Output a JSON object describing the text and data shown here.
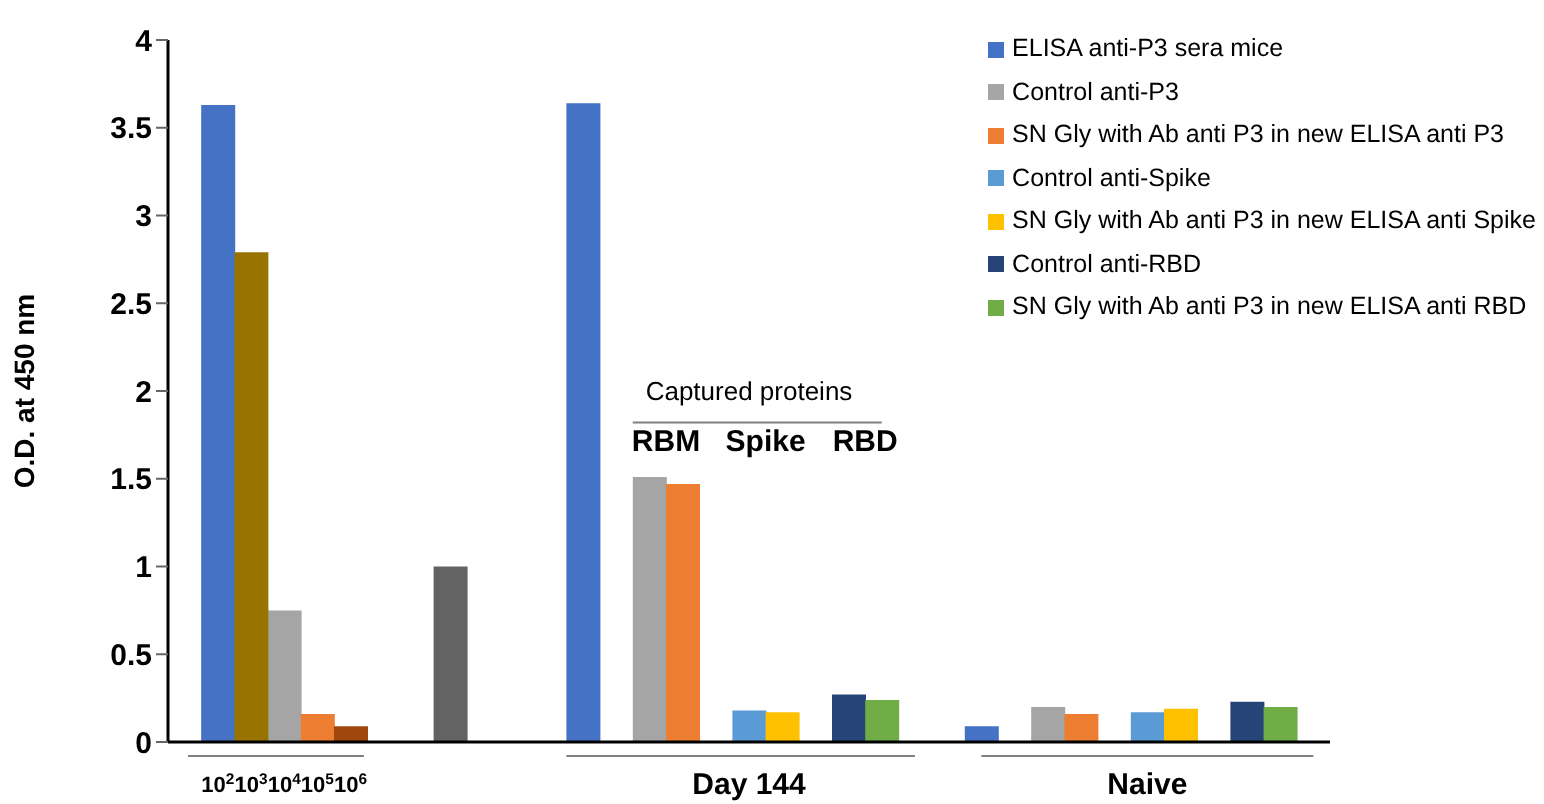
{
  "chart_data": {
    "type": "bar",
    "stacked": true,
    "ylabel": "O.D. at  450 nm",
    "ylim": [
      0,
      4
    ],
    "yticks": [
      0,
      0.5,
      1,
      1.5,
      2,
      2.5,
      3,
      3.5,
      4
    ],
    "legend": "top right",
    "categories": [
      null,
      "10$^{2}$",
      "10$^{3}$",
      "10$^{4}$",
      "10$^{5}$",
      "10$^{6}$",
      null,
      null,
      null,
      null,
      null,
      null,
      null,
      null,
      null,
      null,
      null,
      null,
      null,
      null,
      null,
      null,
      null,
      null,
      null,
      null,
      null,
      null,
      null,
      null,
      null,
      null,
      null,
      null,
      null
    ],
    "annotations": [
      "Captured proteins",
      "RBM",
      "Spike",
      "RBD",
      "Day 144",
      "Naive"
    ],
    "series": [
      {
        "name": "ELISA anti-P3 sera mice",
        "color": "#4472c4",
        "values": [
          null,
          3.63,
          null,
          null,
          null,
          null,
          null,
          null,
          null,
          null,
          null,
          null,
          3.64,
          null,
          null,
          null,
          null,
          null,
          null,
          null,
          null,
          null,
          null,
          null,
          0.09,
          null,
          null,
          null,
          null,
          null,
          null,
          null,
          null,
          null,
          null
        ]
      },
      {
        "name": "Control anti-P3",
        "color": "#a5a5a5",
        "values": [
          null,
          null,
          null,
          0.75,
          null,
          null,
          null,
          null,
          null,
          null,
          null,
          null,
          null,
          null,
          1.51,
          null,
          null,
          null,
          null,
          null,
          null,
          null,
          null,
          null,
          null,
          null,
          0.2,
          null,
          null,
          null,
          null,
          null,
          null,
          null,
          null
        ]
      },
      {
        "name": "SN Gly with Ab anti P3 in new ELISA anti P3",
        "color": "#ed7d31",
        "values": [
          null,
          null,
          null,
          null,
          0.16,
          null,
          null,
          null,
          null,
          null,
          null,
          null,
          null,
          null,
          null,
          1.47,
          null,
          null,
          null,
          null,
          null,
          null,
          null,
          null,
          null,
          null,
          null,
          0.16,
          null,
          null,
          null,
          null,
          null,
          null,
          null
        ]
      },
      {
        "name": "Control anti-Spike",
        "color": "#5b9bd5",
        "values": [
          null,
          null,
          null,
          null,
          null,
          null,
          null,
          null,
          null,
          null,
          null,
          null,
          null,
          null,
          null,
          null,
          null,
          0.18,
          null,
          null,
          null,
          null,
          null,
          null,
          null,
          null,
          null,
          null,
          null,
          0.17,
          null,
          null,
          null,
          null,
          null
        ]
      },
      {
        "name": "SN Gly with Ab anti P3 in new ELISA anti Spike",
        "color": "#ffc000",
        "values": [
          null,
          null,
          null,
          null,
          null,
          null,
          null,
          null,
          null,
          null,
          null,
          null,
          null,
          null,
          null,
          null,
          null,
          null,
          0.17,
          null,
          null,
          null,
          null,
          null,
          null,
          null,
          null,
          null,
          null,
          null,
          0.19,
          null,
          null,
          null,
          null
        ]
      },
      {
        "name": "Control anti-RBD",
        "color": "#264478",
        "values": [
          null,
          null,
          null,
          null,
          null,
          null,
          null,
          null,
          null,
          null,
          null,
          null,
          null,
          null,
          null,
          null,
          null,
          null,
          null,
          null,
          0.27,
          null,
          null,
          null,
          null,
          null,
          null,
          null,
          null,
          null,
          null,
          null,
          0.23,
          null,
          null
        ]
      },
      {
        "name": "SN Gly with Ab anti P3 in new ELISA anti RBD",
        "color": "#70ad47",
        "values": [
          null,
          null,
          null,
          null,
          null,
          null,
          null,
          null,
          null,
          null,
          null,
          null,
          null,
          null,
          null,
          null,
          null,
          null,
          null,
          null,
          null,
          0.24,
          null,
          null,
          null,
          null,
          null,
          null,
          null,
          null,
          null,
          null,
          null,
          0.2,
          null
        ]
      },
      {
        "color": "#997300",
        "values": [
          null,
          null,
          2.79,
          null,
          null,
          null,
          null,
          null,
          null,
          null,
          null,
          null,
          null,
          null,
          null,
          null,
          null,
          null,
          null,
          null,
          null,
          null,
          null,
          null,
          null,
          null,
          null,
          null,
          null,
          null,
          null,
          null,
          null,
          null,
          null
        ]
      },
      {
        "color": "#9e480e",
        "values": [
          null,
          null,
          null,
          null,
          null,
          0.09,
          null,
          null,
          null,
          null,
          null,
          null,
          null,
          null,
          null,
          null,
          null,
          null,
          null,
          null,
          null,
          null,
          null,
          null,
          null,
          null,
          null,
          null,
          null,
          null,
          null,
          null,
          null,
          null,
          null
        ]
      },
      {
        "color": "#636363",
        "values": [
          null,
          null,
          null,
          null,
          null,
          null,
          null,
          null,
          1.0,
          null,
          null,
          null,
          null,
          null,
          null,
          null,
          null,
          null,
          null,
          null,
          null,
          null,
          null,
          null,
          null,
          null,
          null,
          null,
          null,
          null,
          null,
          null,
          null,
          null,
          null
        ]
      }
    ]
  }
}
